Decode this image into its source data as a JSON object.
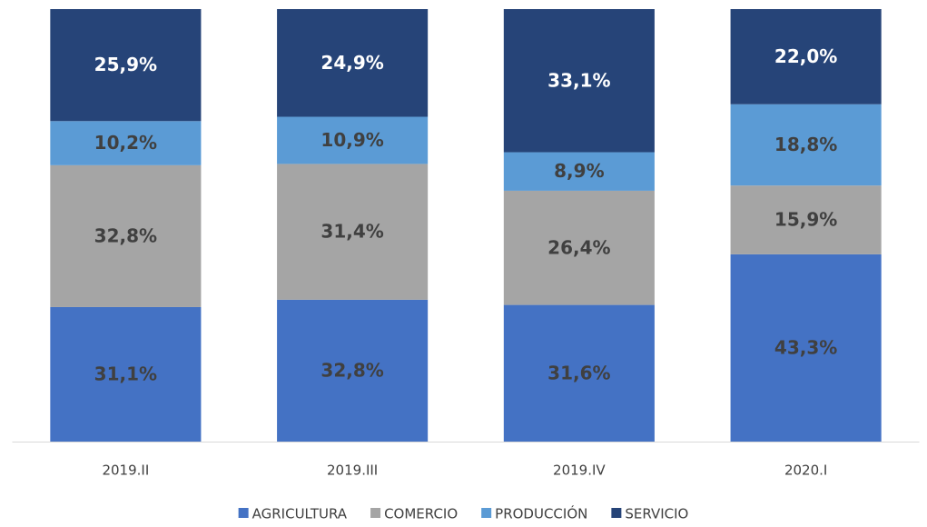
{
  "chart_data": {
    "type": "stacked_bar",
    "categories": [
      "2019.II",
      "2019.III",
      "2019.IV",
      "2020.I"
    ],
    "ylim": [
      0,
      100
    ],
    "series": [
      {
        "name": "AGRICULTURA",
        "color": "#4472c4",
        "label_color": "#404040",
        "values": [
          31.1,
          32.8,
          31.6,
          43.3
        ],
        "value_labels": [
          "31,1%",
          "32,8%",
          "31,6%",
          "43,3%"
        ]
      },
      {
        "name": "COMERCIO",
        "color": "#a5a5a5",
        "label_color": "#404040",
        "values": [
          32.8,
          31.4,
          26.4,
          15.9
        ],
        "value_labels": [
          "32,8%",
          "31,4%",
          "26,4%",
          "15,9%"
        ]
      },
      {
        "name": "PRODUCCIÓN",
        "color": "#5b9bd5",
        "label_color": "#404040",
        "values": [
          10.2,
          10.9,
          8.9,
          18.8
        ],
        "value_labels": [
          "10,2%",
          "10,9%",
          "8,9%",
          "18,8%"
        ]
      },
      {
        "name": "SERVICIO",
        "color": "#264478",
        "label_color": "#ffffff",
        "values": [
          25.9,
          24.9,
          33.1,
          22.0
        ],
        "value_labels": [
          "25,9%",
          "24,9%",
          "33,1%",
          "22,0%"
        ]
      }
    ]
  }
}
